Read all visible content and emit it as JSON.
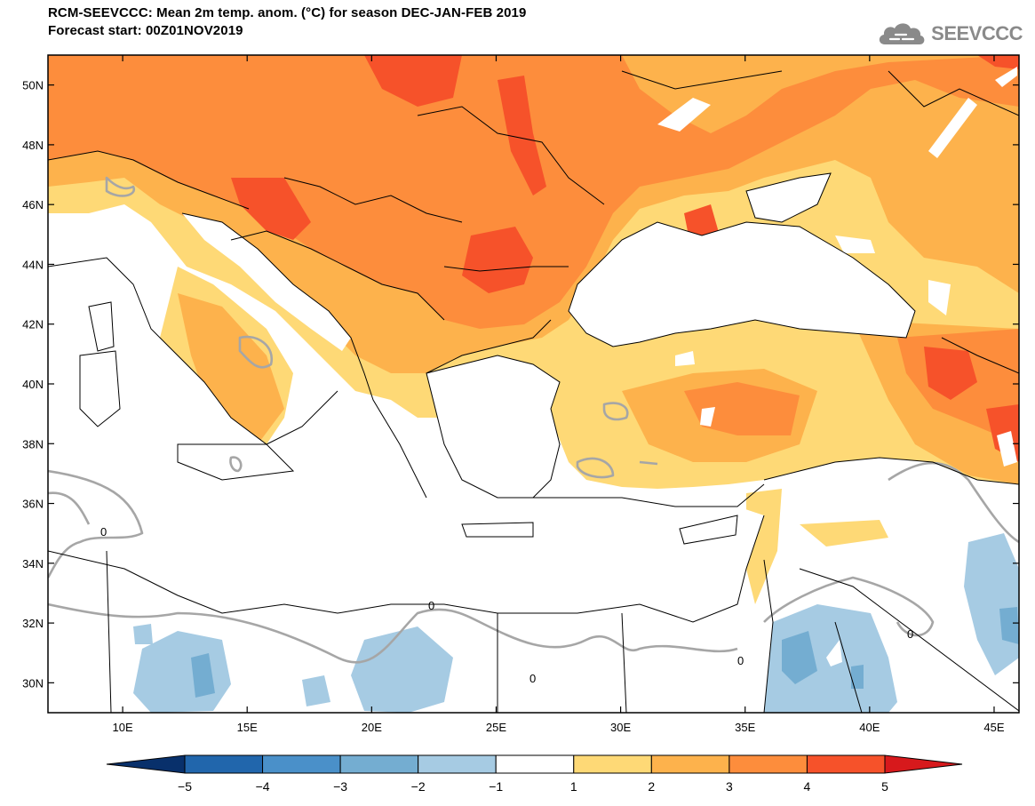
{
  "header": {
    "title_line1": "RCM-SEEVCCC: Mean 2m temp. anom. (°C) for season DEC-JAN-FEB 2019",
    "title_line2": "Forecast start: 00Z01NOV2019"
  },
  "logo": {
    "icon": "cloud-icon",
    "text": "SEEVCCC",
    "color": "#8a8a8a"
  },
  "map": {
    "lon_range": [
      7,
      46
    ],
    "lat_range": [
      29,
      51
    ],
    "lat_ticks": [
      {
        "value": 50,
        "label": "50N"
      },
      {
        "value": 48,
        "label": "48N"
      },
      {
        "value": 46,
        "label": "46N"
      },
      {
        "value": 44,
        "label": "44N"
      },
      {
        "value": 42,
        "label": "42N"
      },
      {
        "value": 40,
        "label": "40N"
      },
      {
        "value": 38,
        "label": "38N"
      },
      {
        "value": 36,
        "label": "36N"
      },
      {
        "value": 34,
        "label": "34N"
      },
      {
        "value": 32,
        "label": "32N"
      },
      {
        "value": 30,
        "label": "30N"
      }
    ],
    "lon_ticks": [
      {
        "value": 10,
        "label": "10E"
      },
      {
        "value": 15,
        "label": "15E"
      },
      {
        "value": 20,
        "label": "20E"
      },
      {
        "value": 25,
        "label": "25E"
      },
      {
        "value": 30,
        "label": "30E"
      },
      {
        "value": 35,
        "label": "35E"
      },
      {
        "value": 40,
        "label": "40E"
      },
      {
        "value": 45,
        "label": "45E"
      }
    ],
    "zero_contour_label": "0"
  },
  "colorbar": {
    "levels": [
      "−5",
      "−4",
      "−3",
      "−2",
      "−1",
      "1",
      "2",
      "3",
      "4",
      "5"
    ],
    "colors": [
      "#08306b",
      "#2166ac",
      "#4a90c9",
      "#74add1",
      "#a6cbe3",
      "#ffffff",
      "#fed976",
      "#fdb24c",
      "#fd8d3c",
      "#f6522a",
      "#d7191c"
    ]
  }
}
